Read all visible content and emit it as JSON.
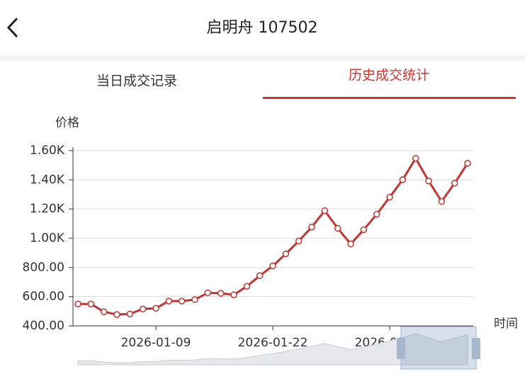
{
  "header": {
    "title": "启明舟 107502"
  },
  "tabs": [
    "当日成交记录",
    "历史成交统计"
  ],
  "chart_data": {
    "type": "line",
    "y_axis_label": "价格",
    "x_axis_label": "时间",
    "categories": [
      null,
      null,
      null,
      null,
      null,
      null,
      "2026-01-09",
      null,
      null,
      null,
      null,
      null,
      null,
      null,
      null,
      "2026-01-22",
      null,
      null,
      null,
      null,
      null,
      null,
      null,
      null,
      "2026-02-04",
      null,
      null,
      null,
      null,
      null,
      null
    ],
    "series": [
      {
        "name": "价格",
        "color": "#c23531",
        "values": [
          550,
          550,
          497,
          478,
          482,
          516,
          521,
          570,
          570,
          580,
          627,
          623,
          613,
          671,
          744,
          811,
          893,
          981,
          1077,
          1189,
          1068,
          961,
          1058,
          1164,
          1281,
          1401,
          1547,
          1392,
          1252,
          1377,
          1513
        ]
      }
    ],
    "ylim": [
      400,
      1600
    ],
    "yticks": [
      {
        "value": 400,
        "label": "400.00"
      },
      {
        "value": 600,
        "label": "600.00"
      },
      {
        "value": 800,
        "label": "800.00"
      },
      {
        "value": 1000,
        "label": "1.00K"
      },
      {
        "value": 1200,
        "label": "1.20K"
      },
      {
        "value": 1400,
        "label": "1.40K"
      },
      {
        "value": 1600,
        "label": "1.60K"
      }
    ],
    "grid": true
  }
}
